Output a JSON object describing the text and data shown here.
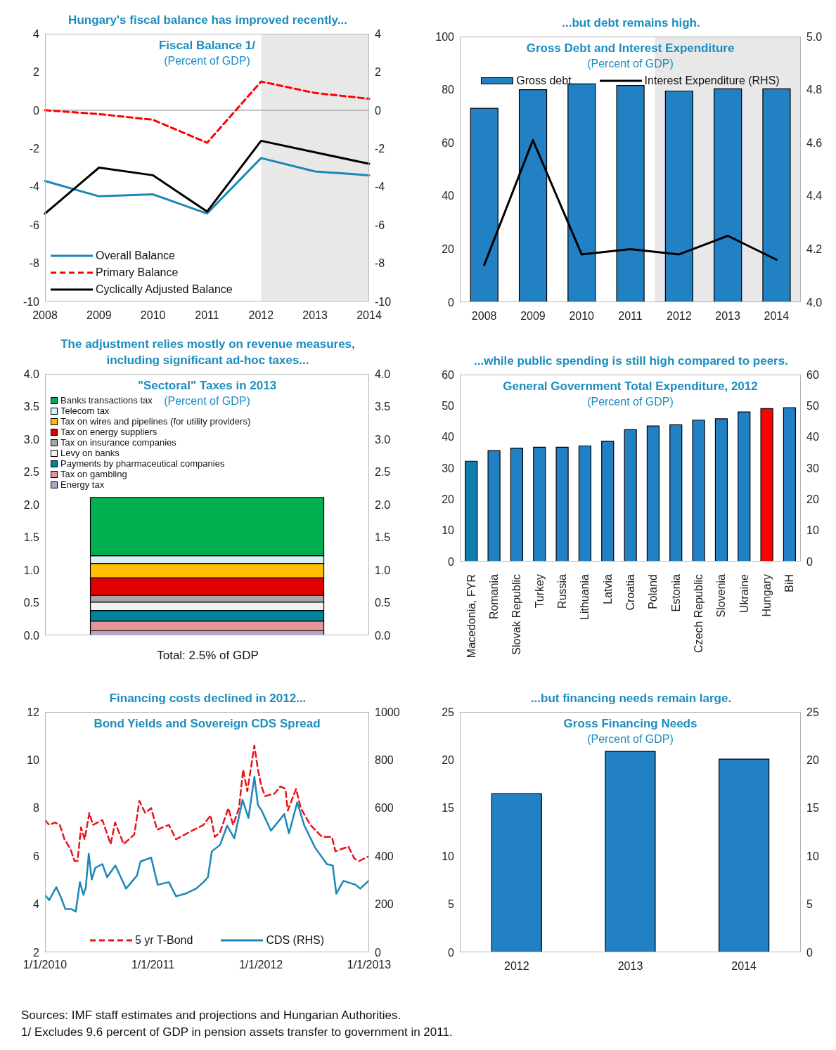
{
  "chart_data": [
    {
      "type": "line",
      "title": "Hungary's fiscal balance has improved recently...",
      "subtitle": "Fiscal Balance 1/",
      "annotations": [
        "(Percent of GDP)"
      ],
      "categories": [
        "2008",
        "2009",
        "2010",
        "2011",
        "2012",
        "2013",
        "2014"
      ],
      "series": [
        {
          "name": "Overall Balance",
          "color": "#1a87b8",
          "values": [
            -3.7,
            -4.5,
            -4.4,
            -5.4,
            -2.5,
            -3.2,
            -3.4
          ]
        },
        {
          "name": "Primary Balance",
          "color": "#ff0000",
          "line_style": "dashed",
          "values": [
            0.0,
            -0.2,
            -0.5,
            -1.7,
            1.5,
            0.9,
            0.6
          ]
        },
        {
          "name": "Cyclically Adjusted Balance",
          "color": "#000000",
          "values": [
            -5.4,
            -3.0,
            -3.4,
            -5.3,
            -1.6,
            -2.2,
            -2.8
          ]
        }
      ],
      "ylim": [
        -10,
        4
      ],
      "yticks": [
        -10,
        -8,
        -6,
        -4,
        -2,
        0,
        2,
        4
      ],
      "y2lim": [
        -10,
        4
      ],
      "y2ticks": [
        -10,
        -8,
        -6,
        -4,
        -2,
        0,
        2,
        4
      ],
      "legend": "bottom left",
      "marker": "none",
      "bands": [
        {
          "axis": "x",
          "from": "2012",
          "to": "2014",
          "color": "#e6e6e6"
        }
      ],
      "ref_lines": [
        {
          "axis": "y",
          "value": 0,
          "color": "#a6a6a6"
        }
      ]
    },
    {
      "type": "bar",
      "title": "...but debt remains high.",
      "subtitle": "Gross Debt and Interest Expenditure",
      "annotations": [
        "(Percent of GDP)"
      ],
      "categories": [
        "2008",
        "2009",
        "2010",
        "2011",
        "2012",
        "2013",
        "2014"
      ],
      "series": [
        {
          "name": "Gross debt",
          "color": "#2280c4",
          "values": [
            73.0,
            80.0,
            82.2,
            81.6,
            79.5,
            80.3,
            80.3
          ]
        },
        {
          "name": "Interest Expenditure (RHS)",
          "type": "line",
          "axis": "y2",
          "color": "#000000",
          "values": [
            4.14,
            4.61,
            4.18,
            4.2,
            4.18,
            4.25,
            4.16
          ]
        }
      ],
      "ylim": [
        0,
        100
      ],
      "yticks": [
        0,
        20,
        40,
        60,
        80,
        100
      ],
      "y2lim": [
        4.0,
        5.0
      ],
      "y2ticks": [
        {
          "value": 4.0,
          "label": "4.0"
        },
        {
          "value": 4.2,
          "label": "4.2"
        },
        {
          "value": 4.4,
          "label": "4.4"
        },
        {
          "value": 4.6,
          "label": "4.6"
        },
        {
          "value": 4.8,
          "label": "4.8"
        },
        {
          "value": 5.0,
          "label": "5.0"
        }
      ],
      "legend": "top",
      "marker": "none",
      "bands": [
        {
          "axis": "x",
          "from": "2012",
          "to": "2014",
          "color": "#e6e6e6"
        }
      ]
    },
    {
      "type": "bar",
      "stacked": true,
      "title": "The adjustment relies mostly on revenue measures, including significant ad-hoc taxes...",
      "subtitle": "\"Sectoral\" Taxes in 2013",
      "annotations": [
        "(Percent of GDP)"
      ],
      "xlabel": "Total: 2.5% of GDP",
      "categories": [
        null
      ],
      "series": [
        {
          "name": "Energy tax",
          "color": "#b3a2c7",
          "values": [
            0.07
          ]
        },
        {
          "name": "Tax on gambling",
          "color": "#e6969a",
          "values": [
            0.15
          ]
        },
        {
          "name": "Payments by pharmaceutical companies",
          "color": "#00829b",
          "values": [
            0.16
          ]
        },
        {
          "name": "Levy on banks",
          "color": "#f2f2f2",
          "values": [
            0.13
          ]
        },
        {
          "name": "Tax on insurance companies",
          "color": "#a6a6a6",
          "values": [
            0.1
          ]
        },
        {
          "name": "Tax on energy suppliers",
          "color": "#e00000",
          "values": [
            0.27
          ]
        },
        {
          "name": "Tax on wires and pipelines (for utility providers)",
          "color": "#ffc000",
          "values": [
            0.22
          ]
        },
        {
          "name": "Telecom tax",
          "color": "#daeef3",
          "values": [
            0.12
          ]
        },
        {
          "name": "Banks transactions tax",
          "color": "#00b050",
          "values": [
            0.89
          ]
        }
      ],
      "ylim": [
        0,
        4
      ],
      "yticks": [
        {
          "value": 0,
          "label": "0.0"
        },
        {
          "value": 0.5,
          "label": "0.5"
        },
        {
          "value": 1,
          "label": "1.0"
        },
        {
          "value": 1.5,
          "label": "1.5"
        },
        {
          "value": 2,
          "label": "2.0"
        },
        {
          "value": 2.5,
          "label": "2.5"
        },
        {
          "value": 3,
          "label": "3.0"
        },
        {
          "value": 3.5,
          "label": "3.5"
        },
        {
          "value": 4,
          "label": "4.0"
        }
      ],
      "y2lim": [
        0,
        4
      ],
      "y2ticks": [
        {
          "value": 0,
          "label": "0.0"
        },
        {
          "value": 0.5,
          "label": "0.5"
        },
        {
          "value": 1,
          "label": "1.0"
        },
        {
          "value": 1.5,
          "label": "1.5"
        },
        {
          "value": 2,
          "label": "2.0"
        },
        {
          "value": 2.5,
          "label": "2.5"
        },
        {
          "value": 3,
          "label": "3.0"
        },
        {
          "value": 3.5,
          "label": "3.5"
        },
        {
          "value": 4,
          "label": "4.0"
        }
      ],
      "legend": "top left"
    },
    {
      "type": "bar",
      "title": "...while public spending is still high compared to peers.",
      "subtitle": "General Government Total Expenditure, 2012",
      "annotations": [
        "(Percent of GDP)"
      ],
      "categories": [
        "Macedonia, FYR",
        "Romania",
        "Slovak Republic",
        "Turkey",
        "Russia",
        "Lithuania",
        "Latvia",
        "Croatia",
        "Poland",
        "Estonia",
        "Czech Republic",
        "Slovenia",
        "Ukraine",
        "Hungary",
        "BiH"
      ],
      "values": [
        32.2,
        35.6,
        36.4,
        36.7,
        36.7,
        37.1,
        38.6,
        42.3,
        43.5,
        43.9,
        45.4,
        45.8,
        48.0,
        49.1,
        49.4
      ],
      "colors": [
        "#0f7fae",
        "#2280c4",
        "#2280c4",
        "#2280c4",
        "#2280c4",
        "#2280c4",
        "#2280c4",
        "#2280c4",
        "#2280c4",
        "#2280c4",
        "#2280c4",
        "#2280c4",
        "#2280c4",
        "#ff0000",
        "#2280c4"
      ],
      "ylim": [
        0,
        60
      ],
      "yticks": [
        0,
        10,
        20,
        30,
        40,
        50,
        60
      ],
      "y2lim": [
        0,
        60
      ],
      "y2ticks": [
        0,
        10,
        20,
        30,
        40,
        50,
        60
      ]
    },
    {
      "type": "line",
      "title": "Financing costs declined in 2012...",
      "subtitle": "Bond Yields and Sovereign CDS Spread",
      "series": [
        {
          "name": "5 yr T-Bond",
          "color": "#e8141b",
          "line_style": "dashed",
          "x": [
            "2010-01-01",
            "2010-01-15",
            "2010-02-04",
            "2010-02-20",
            "2010-03-08",
            "2010-03-28",
            "2010-04-11",
            "2010-04-21",
            "2010-05-03",
            "2010-05-15",
            "2010-05-31",
            "2010-06-12",
            "2010-07-14",
            "2010-08-11",
            "2010-08-26",
            "2010-09-24",
            "2010-10-30",
            "2010-11-16",
            "2010-12-06",
            "2010-12-26",
            "2011-01-15",
            "2011-02-24",
            "2011-03-20",
            "2011-05-04",
            "2011-06-21",
            "2011-07-15",
            "2011-07-29",
            "2011-08-16",
            "2011-09-13",
            "2011-09-29",
            "2011-10-19",
            "2011-11-02",
            "2011-11-16",
            "2011-12-10",
            "2011-12-22",
            "2012-01-03",
            "2012-01-15",
            "2012-02-16",
            "2012-03-07",
            "2012-03-24",
            "2012-04-01",
            "2012-04-29",
            "2012-05-15",
            "2012-06-16",
            "2012-07-26",
            "2012-08-28",
            "2012-09-09",
            "2012-10-23",
            "2012-11-12",
            "2012-11-28",
            "2013-01-01"
          ],
          "values": [
            7.5,
            7.3,
            7.4,
            7.3,
            6.7,
            6.3,
            5.8,
            5.8,
            7.2,
            6.7,
            7.8,
            7.3,
            7.5,
            6.5,
            7.4,
            6.5,
            6.9,
            8.3,
            7.8,
            8.0,
            7.1,
            7.3,
            6.7,
            7.0,
            7.3,
            7.7,
            6.8,
            7.0,
            8.0,
            7.3,
            8.0,
            9.6,
            8.7,
            10.6,
            9.6,
            8.9,
            8.5,
            8.6,
            8.9,
            8.8,
            7.9,
            8.8,
            8.0,
            7.3,
            6.8,
            6.8,
            6.2,
            6.4,
            5.9,
            5.8,
            6.0
          ]
        },
        {
          "name": "CDS (RHS)",
          "color": "#1a87b8",
          "axis": "y2",
          "x": [
            "2010-01-01",
            "2010-01-15",
            "2010-02-08",
            "2010-02-24",
            "2010-03-11",
            "2010-04-01",
            "2010-04-15",
            "2010-04-29",
            "2010-05-11",
            "2010-05-19",
            "2010-05-29",
            "2010-06-08",
            "2010-06-20",
            "2010-07-14",
            "2010-07-30",
            "2010-08-27",
            "2010-10-02",
            "2010-11-08",
            "2010-11-20",
            "2010-12-26",
            "2011-01-17",
            "2011-02-24",
            "2011-03-20",
            "2011-04-21",
            "2011-05-27",
            "2011-06-21",
            "2011-07-06",
            "2011-07-19",
            "2011-08-16",
            "2011-09-09",
            "2011-10-03",
            "2011-10-31",
            "2011-11-20",
            "2011-12-10",
            "2011-12-22",
            "2012-01-03",
            "2012-02-04",
            "2012-03-20",
            "2012-04-05",
            "2012-05-03",
            "2012-05-27",
            "2012-07-02",
            "2012-08-11",
            "2012-08-31",
            "2012-09-12",
            "2012-10-06",
            "2012-11-16",
            "2012-12-02",
            "2013-01-01"
          ],
          "values": [
            239,
            217,
            271,
            228,
            180,
            180,
            169,
            292,
            239,
            271,
            410,
            303,
            351,
            367,
            313,
            361,
            265,
            319,
            378,
            394,
            281,
            292,
            233,
            244,
            265,
            292,
            313,
            420,
            447,
            527,
            474,
            634,
            559,
            730,
            613,
            591,
            506,
            575,
            495,
            624,
            527,
            436,
            367,
            361,
            244,
            297,
            281,
            265,
            299
          ]
        }
      ],
      "xlim": [
        "2010-01-01",
        "2013-01-01"
      ],
      "xticks": [
        {
          "value": "2010-01-01",
          "label": "1/1/2010"
        },
        {
          "value": "2011-01-01",
          "label": "1/1/2011"
        },
        {
          "value": "2012-01-01",
          "label": "1/1/2012"
        },
        {
          "value": "2013-01-01",
          "label": "1/1/2013"
        }
      ],
      "ylim": [
        2,
        12
      ],
      "yticks": [
        2,
        4,
        6,
        8,
        10,
        12
      ],
      "y2lim": [
        0,
        1000
      ],
      "y2ticks": [
        0,
        200,
        400,
        600,
        800,
        1000
      ],
      "legend": "bottom",
      "marker": "none"
    },
    {
      "type": "bar",
      "title": "...but financing needs remain large.",
      "subtitle": "Gross Financing Needs",
      "annotations": [
        "(Percent of GDP)"
      ],
      "categories": [
        "2012",
        "2013",
        "2014"
      ],
      "values": [
        16.5,
        20.9,
        20.1
      ],
      "color": "#2280c4",
      "ylim": [
        0,
        25
      ],
      "yticks": [
        0,
        5,
        10,
        15,
        20,
        25
      ],
      "y2lim": [
        0,
        25
      ],
      "y2ticks": [
        0,
        5,
        10,
        15,
        20,
        25
      ]
    },
    {
      "type": "other",
      "annotations": [
        "Sources: IMF staff estimates and projections and Hungarian Authorities.",
        "1/ Excludes 9.6 percent of GDP in pension assets transfer to government in 2011."
      ]
    }
  ]
}
